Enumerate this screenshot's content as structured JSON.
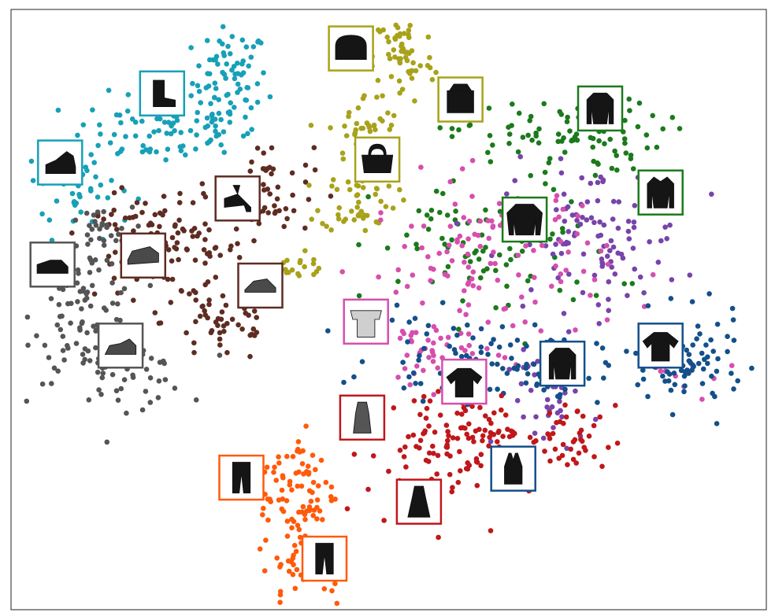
{
  "chart_data": {
    "type": "scatter",
    "title": "",
    "xlabel": "",
    "ylabel": "",
    "axes_ticks": false,
    "grid": false,
    "legend": "none",
    "xlim": [
      0,
      100
    ],
    "ylim": [
      0,
      100
    ],
    "series": [
      {
        "color": "#17a0b8",
        "clusters": [
          {
            "cx": 29,
            "cy": 88,
            "sx": 2.5,
            "sy": 4.5,
            "n": 80
          },
          {
            "cx": 20,
            "cy": 80,
            "sx": 6,
            "sy": 3,
            "n": 80
          },
          {
            "cx": 9,
            "cy": 70,
            "sx": 3.5,
            "sy": 4,
            "n": 45
          }
        ]
      },
      {
        "color": "#5e2c22",
        "clusters": [
          {
            "cx": 34,
            "cy": 70,
            "sx": 3,
            "sy": 4,
            "n": 55
          },
          {
            "cx": 21,
            "cy": 60,
            "sx": 5,
            "sy": 4,
            "n": 90
          },
          {
            "cx": 28,
            "cy": 48,
            "sx": 4,
            "sy": 3.5,
            "n": 55
          },
          {
            "cx": 16,
            "cy": 65,
            "sx": 3,
            "sy": 2.5,
            "n": 20
          }
        ]
      },
      {
        "color": "#555555",
        "clusters": [
          {
            "cx": 10,
            "cy": 50,
            "sx": 3.5,
            "sy": 6,
            "n": 90
          },
          {
            "cx": 15,
            "cy": 40,
            "sx": 4,
            "sy": 3,
            "n": 50
          },
          {
            "cx": 11,
            "cy": 63,
            "sx": 2.5,
            "sy": 2,
            "n": 25
          }
        ]
      },
      {
        "color": "#a8a21a",
        "clusters": [
          {
            "cx": 52,
            "cy": 92,
            "sx": 2,
            "sy": 4,
            "n": 60
          },
          {
            "cx": 47,
            "cy": 80,
            "sx": 2.5,
            "sy": 3,
            "n": 40
          },
          {
            "cx": 46,
            "cy": 68,
            "sx": 2.5,
            "sy": 2.5,
            "n": 45
          },
          {
            "cx": 37,
            "cy": 57,
            "sx": 3,
            "sy": 1.2,
            "n": 20
          }
        ]
      },
      {
        "color": "#1b7a1b",
        "clusters": [
          {
            "cx": 72,
            "cy": 79,
            "sx": 7,
            "sy": 3,
            "n": 90
          },
          {
            "cx": 64,
            "cy": 60,
            "sx": 8,
            "sy": 6,
            "n": 90
          }
        ]
      },
      {
        "color": "#7744aa",
        "clusters": [
          {
            "cx": 77,
            "cy": 62,
            "sx": 6,
            "sy": 6,
            "n": 110
          },
          {
            "cx": 72,
            "cy": 35,
            "sx": 3,
            "sy": 4,
            "n": 40
          }
        ]
      },
      {
        "color": "#d64fae",
        "clusters": [
          {
            "cx": 63,
            "cy": 58,
            "sx": 8,
            "sy": 7,
            "n": 120
          },
          {
            "cx": 56,
            "cy": 43,
            "sx": 4,
            "sy": 3,
            "n": 40
          },
          {
            "cx": 90,
            "cy": 40,
            "sx": 4,
            "sy": 2,
            "n": 10
          }
        ]
      },
      {
        "color": "#14508a",
        "clusters": [
          {
            "cx": 89,
            "cy": 41,
            "sx": 4,
            "sy": 4,
            "n": 100
          },
          {
            "cx": 60,
            "cy": 42,
            "sx": 6,
            "sy": 3.5,
            "n": 80
          },
          {
            "cx": 72,
            "cy": 40,
            "sx": 3,
            "sy": 3,
            "n": 30
          }
        ]
      },
      {
        "color": "#c0171b",
        "clusters": [
          {
            "cx": 56,
            "cy": 26,
            "sx": 4.5,
            "sy": 6,
            "n": 90
          },
          {
            "cx": 73,
            "cy": 28,
            "sx": 3.5,
            "sy": 3,
            "n": 50
          },
          {
            "cx": 62,
            "cy": 30,
            "sx": 3,
            "sy": 3,
            "n": 35
          }
        ]
      },
      {
        "color": "#ff5a0a",
        "clusters": [
          {
            "cx": 38,
            "cy": 20,
            "sx": 2.5,
            "sy": 5,
            "n": 80
          },
          {
            "cx": 39,
            "cy": 8,
            "sx": 3,
            "sy": 4,
            "n": 50
          }
        ]
      }
    ],
    "thumbnails": [
      {
        "name": "ankle-boot",
        "icon": "boot",
        "color": "#17a0b8",
        "x": 20,
        "y": 86
      },
      {
        "name": "sneaker",
        "icon": "high-sneaker",
        "color": "#17a0b8",
        "x": 6.5,
        "y": 74.5
      },
      {
        "name": "sandal-heel",
        "icon": "heel-sandal",
        "color": "#5e2c22",
        "x": 30,
        "y": 68.5
      },
      {
        "name": "sandal-strap",
        "icon": "strappy-sandal",
        "color": "#5e2c22",
        "x": 17.5,
        "y": 59
      },
      {
        "name": "sandal-flat",
        "icon": "flat-sandal",
        "color": "#5e2c22",
        "x": 33,
        "y": 54
      },
      {
        "name": "sneaker-low",
        "icon": "low-sneaker",
        "color": "#555555",
        "x": 5.5,
        "y": 57.5
      },
      {
        "name": "sneaker-white",
        "icon": "running-shoe",
        "color": "#555555",
        "x": 14.5,
        "y": 44
      },
      {
        "name": "bag-round",
        "icon": "round-bag",
        "color": "#a8a21a",
        "x": 45,
        "y": 93.5
      },
      {
        "name": "bag-messenger",
        "icon": "messenger-bag",
        "color": "#a8a21a",
        "x": 59.5,
        "y": 85
      },
      {
        "name": "bag-tote",
        "icon": "tote-bag",
        "color": "#a8a21a",
        "x": 48.5,
        "y": 75
      },
      {
        "name": "pullover-1",
        "icon": "longsleeve",
        "color": "#1b7a1b",
        "x": 78,
        "y": 83.5
      },
      {
        "name": "pullover-2",
        "icon": "jacket",
        "color": "#1b7a1b",
        "x": 86,
        "y": 69.5
      },
      {
        "name": "pullover-3",
        "icon": "sweater",
        "color": "#1b7a1b",
        "x": 68,
        "y": 65
      },
      {
        "name": "top-offshoulder",
        "icon": "offshoulder",
        "color": "#d64fae",
        "x": 47,
        "y": 48
      },
      {
        "name": "tshirt-pink",
        "icon": "tee",
        "color": "#d64fae",
        "x": 60,
        "y": 38
      },
      {
        "name": "tshirt-dark",
        "icon": "tee",
        "color": "#14508a",
        "x": 86,
        "y": 44
      },
      {
        "name": "top-longsleeve",
        "icon": "longsleeve",
        "color": "#14508a",
        "x": 73,
        "y": 41
      },
      {
        "name": "top-halter",
        "icon": "tank",
        "color": "#14508a",
        "x": 66.5,
        "y": 23.5
      },
      {
        "name": "dress-pattern",
        "icon": "pattern-dress",
        "color": "#c0171b",
        "x": 46.5,
        "y": 32
      },
      {
        "name": "dress-black",
        "icon": "dress",
        "color": "#c0171b",
        "x": 54,
        "y": 18
      },
      {
        "name": "trouser-1",
        "icon": "trouser",
        "color": "#ff5a0a",
        "x": 30.5,
        "y": 22
      },
      {
        "name": "trouser-2",
        "icon": "trouser",
        "color": "#ff5a0a",
        "x": 41.5,
        "y": 8.5
      }
    ]
  }
}
